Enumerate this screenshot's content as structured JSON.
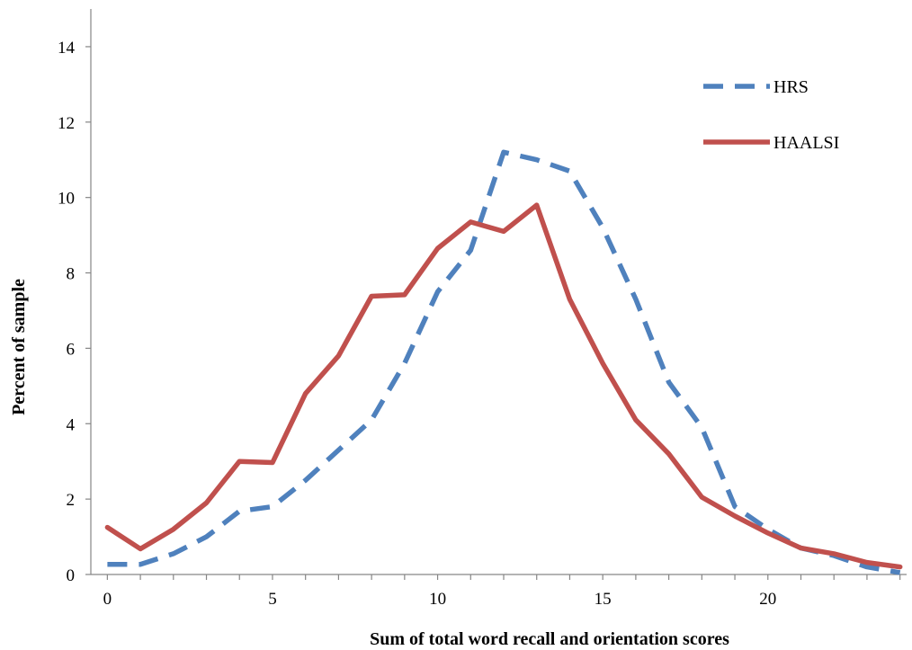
{
  "chart_data": {
    "type": "line",
    "xlabel": "Sum of total word recall and orientation scores",
    "ylabel": "Percent of sample",
    "xlim": [
      -0.5,
      24.2
    ],
    "ylim": [
      0,
      15
    ],
    "xticks": [
      0,
      5,
      10,
      15,
      20
    ],
    "yticks": [
      0,
      2,
      4,
      6,
      8,
      10,
      12,
      14
    ],
    "x": [
      0,
      1,
      2,
      3,
      4,
      5,
      6,
      7,
      8,
      9,
      10,
      11,
      12,
      13,
      14,
      15,
      16,
      17,
      18,
      19,
      20,
      21,
      22,
      23,
      24
    ],
    "series": [
      {
        "name": "HRS",
        "style": "dashed",
        "color": "#4F81BD",
        "values": [
          0.27,
          0.27,
          0.55,
          1.0,
          1.68,
          1.8,
          2.5,
          3.3,
          4.1,
          5.6,
          7.5,
          8.6,
          11.2,
          11.0,
          10.7,
          9.2,
          7.3,
          5.1,
          3.9,
          1.8,
          1.2,
          0.7,
          0.5,
          0.2,
          0.05
        ]
      },
      {
        "name": "HAALSI",
        "style": "solid",
        "color": "#C0504D",
        "values": [
          1.25,
          0.68,
          1.2,
          1.9,
          3.0,
          2.97,
          4.8,
          5.8,
          7.38,
          7.42,
          8.65,
          9.35,
          9.1,
          9.8,
          7.3,
          5.6,
          4.1,
          3.2,
          2.05,
          1.55,
          1.1,
          0.7,
          0.55,
          0.32,
          0.2
        ]
      }
    ],
    "legend": {
      "placement": "top-right",
      "entries": [
        "HRS",
        "HAALSI"
      ]
    },
    "grid": false
  }
}
